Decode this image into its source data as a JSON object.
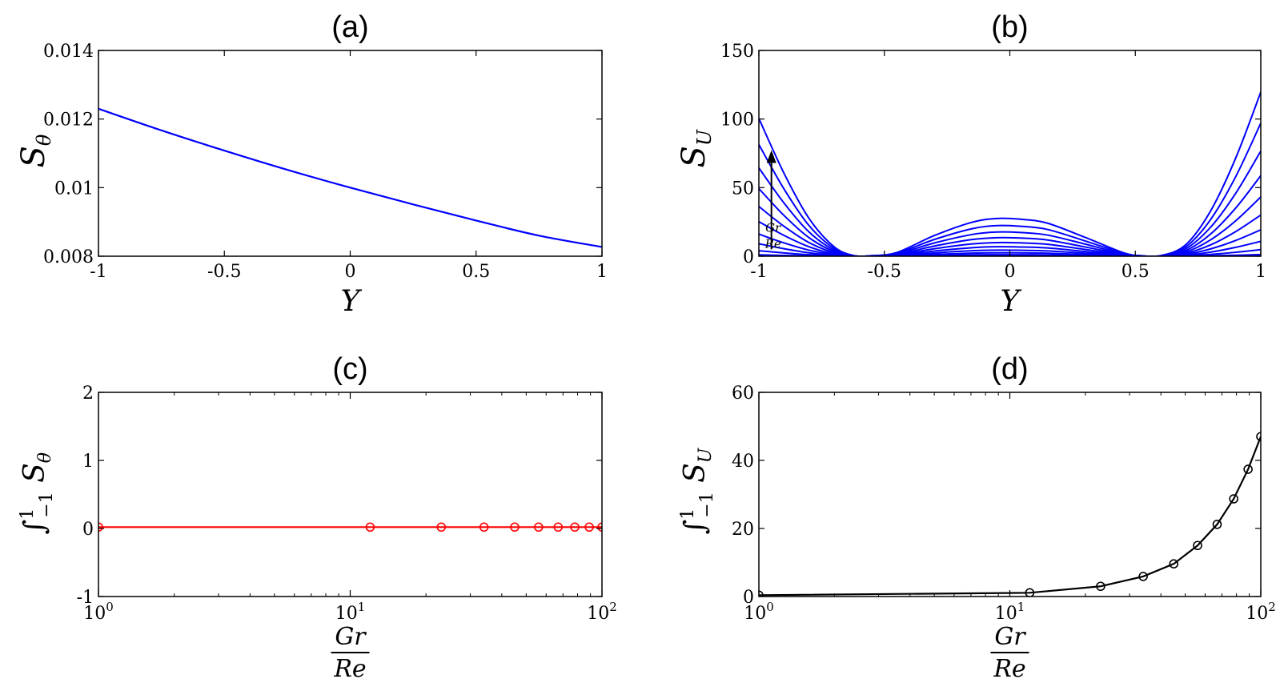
{
  "chart_data": [
    {
      "id": "a",
      "type": "line",
      "title": "(a)",
      "xlabel": "Y",
      "ylabel": "Sθ",
      "xlim": [
        -1,
        1
      ],
      "ylim": [
        0.008,
        0.014
      ],
      "xticks": [
        "-1",
        "-0.5",
        "0",
        "0.5",
        "1"
      ],
      "yticks": [
        "0.008",
        "0.01",
        "0.012",
        "0.014"
      ],
      "series": [
        {
          "color": "#0000ff",
          "x": [
            -1,
            -0.75,
            -0.5,
            -0.25,
            0,
            0.25,
            0.5,
            0.75,
            1
          ],
          "y": [
            0.0123,
            0.01167,
            0.01108,
            0.01052,
            0.01,
            0.00951,
            0.00904,
            0.0086,
            0.00827
          ]
        }
      ]
    },
    {
      "id": "b",
      "type": "line",
      "title": "(b)",
      "xlabel": "Y",
      "ylabel": "SU",
      "xlim": [
        -1,
        1
      ],
      "ylim": [
        0,
        150
      ],
      "xticks": [
        "-1",
        "-0.5",
        "0",
        "0.5",
        "1"
      ],
      "yticks": [
        "0",
        "50",
        "100",
        "150"
      ],
      "annotation": {
        "text": "Gr/Re",
        "arrow_x": -0.95,
        "arrow_y_from": 5,
        "arrow_y_to": 75
      },
      "family": {
        "color": "#0000ff",
        "scales": [
          0.0001,
          0.0139,
          0.0555,
          0.1246,
          0.2212,
          0.3452,
          0.4966,
          0.6754,
          0.8815,
          1.115,
          1.3756
        ],
        "base_profile": {
          "y": [
            -1,
            -0.9,
            -0.8,
            -0.7,
            -0.62,
            -0.55,
            -0.45,
            -0.3,
            -0.15,
            -0.05,
            0.05,
            0.15,
            0.3,
            0.45,
            0.52,
            0.6,
            0.7,
            0.8,
            0.9,
            1
          ],
          "SU": [
            73,
            44,
            20,
            5,
            0.3,
            0.3,
            2,
            11,
            18,
            20,
            19.5,
            17.5,
            10,
            2,
            0.3,
            0.3,
            6,
            24,
            52,
            87
          ]
        }
      }
    },
    {
      "id": "c",
      "type": "line",
      "title": "(c)",
      "xlabel": "Gr/Re",
      "ylabel": "∫ Sθ",
      "xscale": "log",
      "xlim": [
        1,
        100
      ],
      "ylim": [
        -1,
        2
      ],
      "xticks": [
        "10^0",
        "10^1",
        "10^2"
      ],
      "yticks": [
        "-1",
        "0",
        "1",
        "2"
      ],
      "series": [
        {
          "color": "#ff0000",
          "marker": "circle",
          "x": [
            1,
            12,
            23,
            34,
            45,
            56,
            67,
            78,
            89,
            100
          ],
          "y": [
            0.02,
            0.02,
            0.02,
            0.02,
            0.02,
            0.02,
            0.02,
            0.02,
            0.02,
            0.02
          ]
        }
      ]
    },
    {
      "id": "d",
      "type": "line",
      "title": "(d)",
      "xlabel": "Gr/Re",
      "ylabel": "∫ SU",
      "xscale": "log",
      "xlim": [
        1,
        100
      ],
      "ylim": [
        0,
        60
      ],
      "xticks": [
        "10^0",
        "10^1",
        "10^2"
      ],
      "yticks": [
        "0",
        "20",
        "40",
        "60"
      ],
      "series": [
        {
          "color": "#000000",
          "marker": "circle",
          "x": [
            1,
            12,
            23,
            34,
            45,
            56,
            67,
            78,
            89,
            100
          ],
          "y": [
            0.4,
            1.1,
            3.0,
            5.9,
            9.6,
            15.0,
            21.2,
            28.7,
            37.4,
            47.0
          ]
        }
      ]
    }
  ]
}
